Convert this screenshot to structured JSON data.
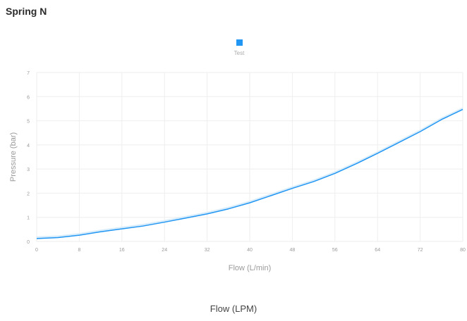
{
  "page": {
    "title": "Spring N",
    "footer_label": "Flow (LPM)"
  },
  "colors": {
    "series": "#2196f3",
    "band": "#d7ecfb",
    "grid": "#eeeeee",
    "axis_text": "#9a9a9a"
  },
  "chart_data": {
    "type": "line",
    "title": "",
    "xlabel": "Flow (L/min)",
    "ylabel": "Pressure (bar)",
    "xlim": [
      0,
      80
    ],
    "ylim": [
      0,
      7
    ],
    "x_ticks": [
      0,
      8,
      16,
      24,
      32,
      40,
      48,
      56,
      64,
      72,
      80
    ],
    "y_ticks": [
      0,
      1,
      2,
      3,
      4,
      5,
      6,
      7
    ],
    "grid": true,
    "legend_position": "top-center",
    "series": [
      {
        "name": "Test",
        "x": [
          0,
          4,
          8,
          12,
          16,
          20,
          24,
          28,
          32,
          36,
          40,
          44,
          48,
          52,
          56,
          60,
          64,
          68,
          72,
          76,
          80
        ],
        "values": [
          0.12,
          0.16,
          0.26,
          0.4,
          0.52,
          0.64,
          0.8,
          0.97,
          1.14,
          1.35,
          1.6,
          1.9,
          2.2,
          2.48,
          2.82,
          3.22,
          3.65,
          4.1,
          4.55,
          5.05,
          5.47
        ]
      }
    ]
  }
}
